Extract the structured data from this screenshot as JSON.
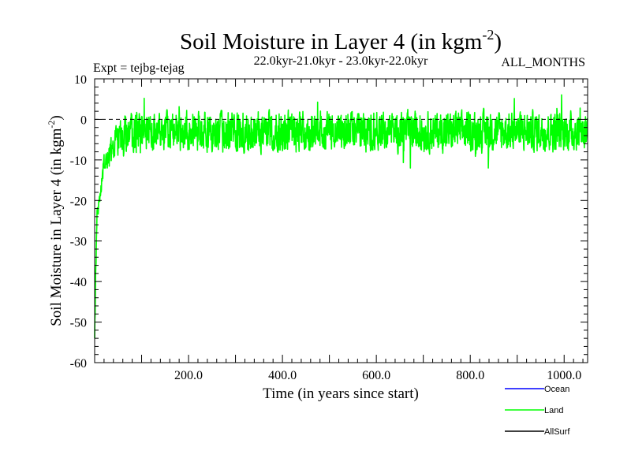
{
  "chart_data": {
    "type": "line",
    "title": "Soil Moisture in Layer 4 (in kgm",
    "title_sup": "-2",
    "title_close": ")",
    "experiment": "Expt = tejbg-tejag",
    "period": "22.0kyr-21.0kyr - 23.0kyr-22.0kyr",
    "months": "ALL_MONTHS",
    "xlabel": "Time (in years since start)",
    "ylabel": "Soil Moisture in Layer 4 (in kgm",
    "ylabel_sup": "-2",
    "ylabel_close": ")",
    "xlim": [
      0,
      1050
    ],
    "ylim": [
      -60,
      10
    ],
    "xticks": [
      200,
      400,
      600,
      800,
      1000
    ],
    "xtick_labels": [
      "200.0",
      "400.0",
      "600.0",
      "800.0",
      "1000.0"
    ],
    "yticks": [
      10,
      0,
      -10,
      -20,
      -30,
      -40,
      -50,
      -60
    ],
    "ytick_labels": [
      "10",
      "0",
      "-10",
      "-20",
      "-30",
      "-40",
      "-50",
      "-60"
    ],
    "reference_line": 0,
    "legend": [
      {
        "name": "Ocean",
        "color": "#0000ff"
      },
      {
        "name": "Land",
        "color": "#00ff00"
      },
      {
        "name": "AllSurf",
        "color": "#000000"
      }
    ],
    "series": [
      {
        "name": "Land",
        "color": "#00ff00",
        "description": "spin-up from about -55 at year 0 to about -12 by year 20, reaching -4 by year 60, then noisy fluctuation around -3 between -12 and +8",
        "anchors": [
          [
            0,
            -55
          ],
          [
            2,
            -40
          ],
          [
            5,
            -25
          ],
          [
            10,
            -18
          ],
          [
            20,
            -12
          ],
          [
            40,
            -7
          ],
          [
            60,
            -4
          ],
          [
            100,
            -3
          ],
          [
            1050,
            -3
          ]
        ],
        "noise_range": [
          -12,
          8
        ]
      }
    ]
  }
}
